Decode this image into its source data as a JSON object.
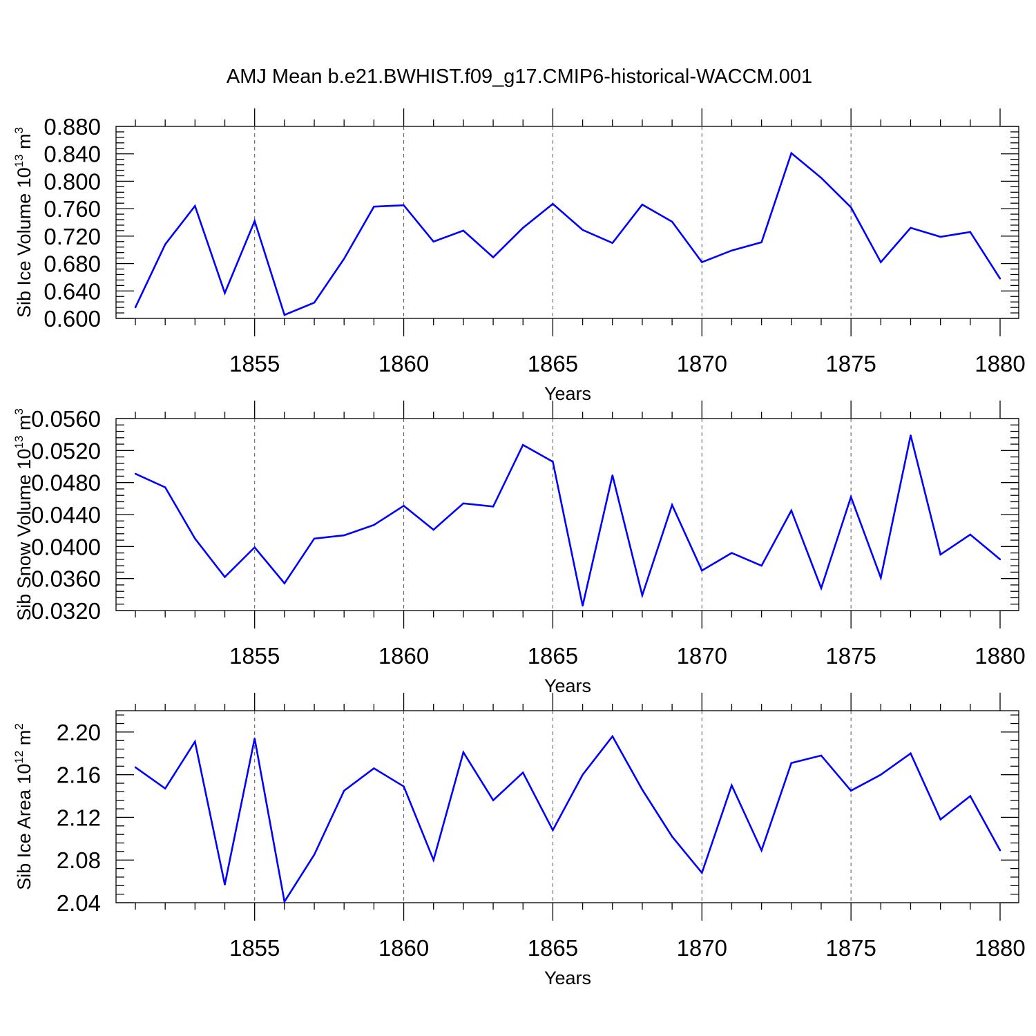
{
  "chart_data": {
    "type": "line",
    "title": "AMJ Mean b.e21.BWHIST.f09_g17.CMIP6-historical-WACCM.001",
    "xlabel": "Years",
    "x": [
      1851,
      1852,
      1853,
      1854,
      1855,
      1856,
      1857,
      1858,
      1859,
      1860,
      1861,
      1862,
      1863,
      1864,
      1865,
      1866,
      1867,
      1868,
      1869,
      1870,
      1871,
      1872,
      1873,
      1874,
      1875,
      1876,
      1877,
      1878,
      1879,
      1880
    ],
    "xlim": [
      1851,
      1880
    ],
    "xticks": [
      1855,
      1860,
      1865,
      1870,
      1875,
      1880
    ],
    "xtick_labels": [
      "1855",
      "1860",
      "1865",
      "1870",
      "1875",
      "1880"
    ],
    "panels": [
      {
        "ylabel": "Sib Ice Volume 10",
        "ylabel_exp": "13",
        "ylabel_unit": " m",
        "ylabel_unit_exp": "3",
        "ylim": [
          0.6,
          0.88
        ],
        "yticks": [
          0.6,
          0.64,
          0.68,
          0.72,
          0.76,
          0.8,
          0.84,
          0.88
        ],
        "ytick_labels": [
          "0.600",
          "0.640",
          "0.680",
          "0.720",
          "0.760",
          "0.800",
          "0.840",
          "0.880"
        ],
        "values": [
          0.616,
          0.708,
          0.764,
          0.637,
          0.742,
          0.605,
          0.623,
          0.687,
          0.763,
          0.765,
          0.712,
          0.728,
          0.689,
          0.732,
          0.767,
          0.729,
          0.71,
          0.766,
          0.741,
          0.682,
          0.699,
          0.711,
          0.841,
          0.805,
          0.762,
          0.682,
          0.732,
          0.719,
          0.726,
          0.658
        ]
      },
      {
        "ylabel": "Sib Snow Volume 10",
        "ylabel_exp": "13",
        "ylabel_unit": " m",
        "ylabel_unit_exp": "3",
        "ylim": [
          0.032,
          0.056
        ],
        "yticks": [
          0.032,
          0.036,
          0.04,
          0.044,
          0.048,
          0.052,
          0.056
        ],
        "ytick_labels": [
          "0.0320",
          "0.0360",
          "0.0400",
          "0.0440",
          "0.0480",
          "0.0520",
          "0.0560"
        ],
        "values": [
          0.0491,
          0.0474,
          0.041,
          0.0362,
          0.0399,
          0.0354,
          0.041,
          0.0414,
          0.0427,
          0.0451,
          0.0421,
          0.0454,
          0.045,
          0.0527,
          0.0506,
          0.0326,
          0.0489,
          0.0339,
          0.0452,
          0.037,
          0.0392,
          0.0376,
          0.0445,
          0.0348,
          0.0462,
          0.0361,
          0.0539,
          0.039,
          0.0415,
          0.0384
        ]
      },
      {
        "ylabel": "Sib Ice Area 10",
        "ylabel_exp": "12",
        "ylabel_unit": " m",
        "ylabel_unit_exp": "2",
        "ylim": [
          2.04,
          2.22
        ],
        "yticks": [
          2.04,
          2.08,
          2.12,
          2.16,
          2.2
        ],
        "ytick_labels": [
          "2.04",
          "2.08",
          "2.12",
          "2.16",
          "2.20"
        ],
        "values": [
          2.167,
          2.147,
          2.191,
          2.057,
          2.194,
          2.041,
          2.085,
          2.145,
          2.166,
          2.149,
          2.08,
          2.181,
          2.136,
          2.162,
          2.108,
          2.16,
          2.196,
          2.146,
          2.102,
          2.068,
          2.15,
          2.089,
          2.171,
          2.178,
          2.145,
          2.16,
          2.18,
          2.118,
          2.14,
          2.089
        ]
      }
    ],
    "grid": "vertical dashed at major x ticks",
    "line_color": "#0000ff"
  }
}
